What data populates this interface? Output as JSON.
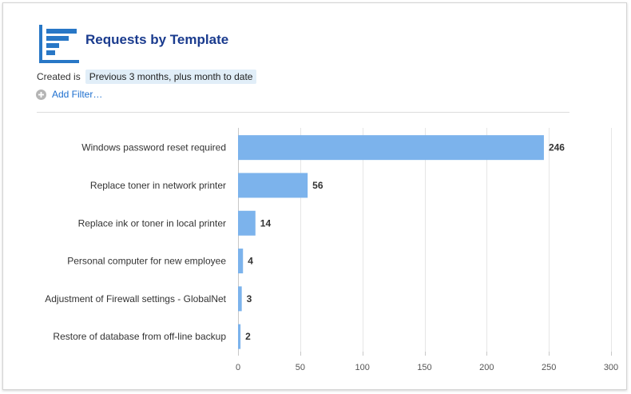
{
  "report": {
    "title": "Requests by Template",
    "icon": "bar-report-icon"
  },
  "filter": {
    "label": "Created is",
    "value": "Previous 3 months, plus month to date"
  },
  "add_filter": {
    "label": "Add Filter…",
    "icon": "plus-circle-icon"
  },
  "colors": {
    "bar": "#7cb3ec",
    "title": "#1a3b8e",
    "link": "#1d6fcf",
    "icon": "#2877c6"
  },
  "chart_data": {
    "type": "bar",
    "orientation": "horizontal",
    "categories": [
      "Windows password reset required",
      "Replace toner in network printer",
      "Replace ink or toner in local printer",
      "Personal computer for new employee",
      "Adjustment of Firewall settings - GlobalNet",
      "Restore of database from off-line backup"
    ],
    "values": [
      246,
      56,
      14,
      4,
      3,
      2
    ],
    "xlim": [
      0,
      300
    ],
    "xticks": [
      0,
      50,
      100,
      150,
      200,
      250,
      300
    ],
    "grid": true,
    "data_labels": true
  }
}
